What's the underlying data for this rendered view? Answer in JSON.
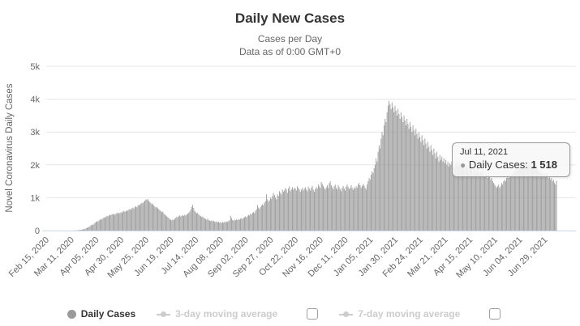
{
  "chart": {
    "title": "Daily New Cases",
    "subtitle1": "Cases per Day",
    "subtitle2": "Data as of 0:00 GMT+0",
    "y_axis_title": "Novel Coronavirus Daily Cases"
  },
  "tooltip": {
    "date": "Jul 11, 2021",
    "series_label": "Daily Cases",
    "value": "1 518"
  },
  "legend": {
    "items": [
      {
        "label": "Daily Cases",
        "enabled": true,
        "marker": "circle",
        "checkbox": false
      },
      {
        "label": "3-day moving average",
        "enabled": false,
        "marker": "line-dot",
        "checkbox": true
      },
      {
        "label": "7-day moving average",
        "enabled": false,
        "marker": "line-dot",
        "checkbox": true
      }
    ]
  },
  "colors": {
    "bar": "#9a9a9a",
    "grid": "#e6e6e6",
    "x_axis_line": "#ccd6eb",
    "axis_text": "#666666",
    "title_text": "#333333",
    "disabled_legend": "#cccccc"
  },
  "chart_data": {
    "type": "bar",
    "title": "Daily New Cases",
    "subtitle": "Cases per Day — Data as of 0:00 GMT+0",
    "series_name": "Daily Cases",
    "xlabel": "",
    "ylabel": "Novel Coronavirus Daily Cases",
    "ylim": [
      0,
      5000
    ],
    "ytick_values": [
      0,
      1000,
      2000,
      3000,
      4000,
      5000
    ],
    "ytick_labels": [
      "0",
      "1k",
      "2k",
      "3k",
      "4k",
      "5k"
    ],
    "x_start_date": "Feb 15, 2020",
    "x_end_date": "Jul 11, 2021",
    "xtick_labels": [
      "Feb 15, 2020",
      "Mar 11, 2020",
      "Apr 05, 2020",
      "Apr 30, 2020",
      "May 25, 2020",
      "Jun 19, 2020",
      "Jul 14, 2020",
      "Aug 08, 2020",
      "Sep 02, 2020",
      "Sep 27, 2020",
      "Oct 22, 2020",
      "Nov 16, 2020",
      "Dec 11, 2020",
      "Jan 05, 2021",
      "Jan 30, 2021",
      "Feb 24, 2021",
      "Mar 21, 2021",
      "Apr 15, 2021",
      "May 10, 2021",
      "Jun 04, 2021",
      "Jun 29, 2021"
    ],
    "xtick_day_indices": [
      0,
      25,
      50,
      75,
      100,
      125,
      150,
      175,
      200,
      225,
      250,
      275,
      300,
      325,
      350,
      375,
      400,
      425,
      450,
      475,
      500
    ],
    "grid": true,
    "legend_position": "bottom",
    "values": [
      0,
      0,
      0,
      0,
      0,
      0,
      0,
      0,
      0,
      0,
      0,
      0,
      0,
      0,
      0,
      0,
      0,
      0,
      0,
      0,
      0,
      0,
      0,
      0,
      0,
      0,
      0,
      2,
      1,
      3,
      5,
      8,
      6,
      12,
      18,
      25,
      30,
      42,
      38,
      55,
      70,
      85,
      95,
      110,
      140,
      160,
      185,
      170,
      210,
      240,
      260,
      290,
      270,
      310,
      330,
      350,
      340,
      380,
      400,
      390,
      420,
      450,
      430,
      460,
      480,
      470,
      500,
      490,
      510,
      480,
      520,
      540,
      510,
      550,
      530,
      560,
      540,
      580,
      600,
      570,
      590,
      620,
      600,
      640,
      660,
      630,
      680,
      700,
      670,
      720,
      740,
      710,
      760,
      790,
      770,
      820,
      850,
      830,
      880,
      910,
      950,
      930,
      960,
      900,
      870,
      840,
      800,
      820,
      760,
      730,
      700,
      720,
      680,
      650,
      620,
      590,
      560,
      580,
      520,
      490,
      460,
      430,
      410,
      380,
      350,
      330,
      310,
      340,
      320,
      360,
      390,
      420,
      400,
      440,
      460,
      430,
      450,
      470,
      440,
      480,
      460,
      490,
      510,
      540,
      580,
      640,
      720,
      780,
      690,
      600,
      560,
      520,
      540,
      490,
      460,
      440,
      410,
      430,
      390,
      370,
      350,
      330,
      360,
      320,
      300,
      290,
      310,
      280,
      300,
      270,
      260,
      280,
      250,
      270,
      240,
      250,
      230,
      260,
      240,
      270,
      250,
      280,
      260,
      290,
      310,
      450,
      380,
      320,
      300,
      330,
      310,
      340,
      320,
      350,
      330,
      360,
      380,
      350,
      390,
      410,
      430,
      400,
      450,
      480,
      460,
      510,
      490,
      540,
      560,
      530,
      600,
      650,
      780,
      700,
      660,
      720,
      760,
      800,
      770,
      850,
      900,
      1100,
      950,
      880,
      920,
      1000,
      960,
      1050,
      1150,
      1080,
      1000,
      950,
      1100,
      1050,
      1200,
      1150,
      1100,
      1250,
      1180,
      1220,
      1300,
      1250,
      1150,
      1280,
      1350,
      1200,
      1260,
      1320,
      1240,
      1300,
      1280,
      1220,
      1350,
      1300,
      1260,
      1180,
      1240,
      1300,
      1220,
      1280,
      1320,
      1250,
      1200,
      1340,
      1280,
      1220,
      1300,
      1360,
      1240,
      1180,
      1260,
      1320,
      1280,
      1400,
      1350,
      1300,
      1480,
      1420,
      1360,
      1300,
      1250,
      1320,
      1380,
      1300,
      1440,
      1500,
      1380,
      1320,
      1260,
      1350,
      1400,
      1300,
      1250,
      1380,
      1320,
      1260,
      1200,
      1300,
      1360,
      1280,
      1220,
      1340,
      1400,
      1320,
      1260,
      1300,
      1380,
      1300,
      1240,
      1320,
      1280,
      1350,
      1300,
      1400,
      1450,
      1380,
      1300,
      1350,
      1420,
      1380,
      1300,
      1250,
      1400,
      1500,
      1600,
      1550,
      1700,
      1800,
      1750,
      1900,
      2000,
      2200,
      2100,
      2400,
      2600,
      2500,
      2800,
      3000,
      2900,
      3200,
      3400,
      3300,
      3600,
      3800,
      3950,
      3850,
      3700,
      3900,
      3750,
      3600,
      3800,
      3650,
      3500,
      3700,
      3550,
      3400,
      3600,
      3450,
      3300,
      3500,
      3350,
      3200,
      3400,
      3250,
      3100,
      3300,
      3150,
      3000,
      3200,
      3050,
      2900,
      3100,
      2950,
      2800,
      3000,
      2850,
      2700,
      2900,
      2750,
      2600,
      2800,
      2650,
      2500,
      2700,
      2550,
      2400,
      2600,
      2450,
      2300,
      2500,
      2350,
      2200,
      2400,
      2250,
      2100,
      2300,
      2150,
      2250,
      2100,
      2200,
      2050,
      2150,
      2000,
      2100,
      1950,
      2050,
      2000,
      2100,
      1950,
      2050,
      1900,
      2000,
      2100,
      1950,
      2050,
      2000,
      1900,
      1950,
      2050,
      1900,
      1850,
      1950,
      2000,
      1900,
      1800,
      1900,
      1850,
      1950,
      1800,
      1900,
      1850,
      1750,
      1850,
      1900,
      1800,
      1700,
      1800,
      1750,
      1850,
      1700,
      1650,
      1750,
      1700,
      1600,
      1700,
      1650,
      1550,
      1600,
      1500,
      1450,
      1400,
      1350,
      1300,
      1350,
      1400,
      1300,
      1350,
      1450,
      1400,
      1500,
      1550,
      1500,
      1600,
      1650,
      1600,
      1700,
      1650,
      1750,
      1700,
      1800,
      1750,
      1850,
      1800,
      1900,
      1850,
      1950,
      1900,
      2000,
      1950,
      2050,
      2000,
      2100,
      2050,
      1950,
      2000,
      2100,
      2000,
      1900,
      1950,
      2050,
      1900,
      1850,
      1950,
      1900,
      1800,
      1850,
      1750,
      1800,
      1700,
      1750,
      1700,
      1650,
      1750,
      1700,
      1600,
      1650,
      1550,
      1600,
      1500,
      1550,
      1450,
      1400,
      1518
    ]
  }
}
